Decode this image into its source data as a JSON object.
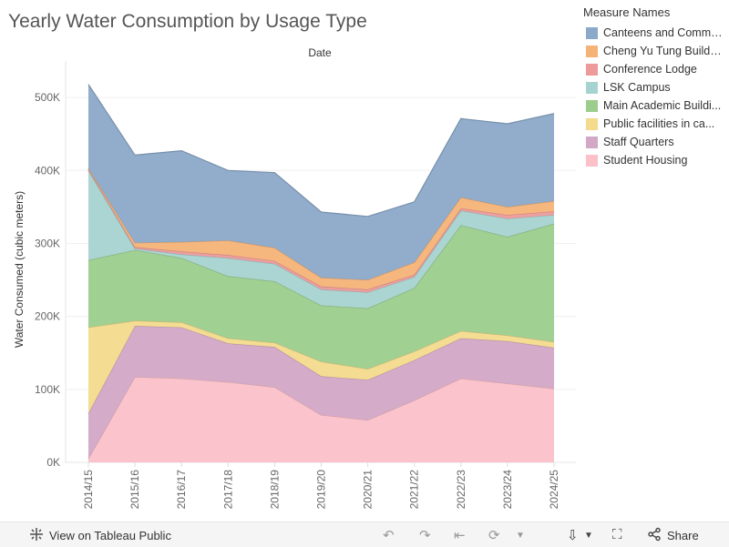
{
  "title": "Yearly Water Consumption by Usage Type",
  "legend": {
    "title": "Measure Names",
    "items": [
      {
        "label": "Canteens and Comme...",
        "color": "#8ba9c8"
      },
      {
        "label": "Cheng Yu Tung Building",
        "color": "#f5b378"
      },
      {
        "label": "Conference Lodge",
        "color": "#ed9a9b"
      },
      {
        "label": "LSK Campus",
        "color": "#a6d3d0"
      },
      {
        "label": "Main Academic Buildi...",
        "color": "#9ccd8d"
      },
      {
        "label": "Public facilities in ca...",
        "color": "#f3da8d"
      },
      {
        "label": "Staff Quarters",
        "color": "#d2a8c6"
      },
      {
        "label": "Student Housing",
        "color": "#fbc0c8"
      }
    ]
  },
  "toolbar": {
    "view_label": "View on Tableau Public",
    "share_label": "Share"
  },
  "chart_data": {
    "type": "area",
    "stacked": true,
    "column_header": "Date",
    "ylabel": "Water Consumed (cubic meters)",
    "ylim": [
      0,
      550000
    ],
    "yticks": [
      0,
      100000,
      200000,
      300000,
      400000,
      500000
    ],
    "ytick_labels": [
      "0K",
      "100K",
      "200K",
      "300K",
      "400K",
      "500K"
    ],
    "categories": [
      "2014/15",
      "2015/16",
      "2016/17",
      "2017/18",
      "2018/19",
      "2019/20",
      "2020/21",
      "2021/22",
      "2022/23",
      "2023/24",
      "2024/25"
    ],
    "series": [
      {
        "name": "Student Housing",
        "color": "#fbc0c8",
        "values": [
          5000,
          117000,
          115000,
          110000,
          103000,
          65000,
          58000,
          85000,
          115000,
          108000,
          101000
        ]
      },
      {
        "name": "Staff Quarters",
        "color": "#d2a8c6",
        "values": [
          62000,
          70000,
          70000,
          53000,
          55000,
          53000,
          55000,
          55000,
          55000,
          58000,
          56000
        ]
      },
      {
        "name": "Public facilities in ca...",
        "color": "#f3da8d",
        "values": [
          118000,
          7000,
          7000,
          7000,
          6000,
          20000,
          15000,
          12000,
          10000,
          8000,
          8000
        ]
      },
      {
        "name": "Main Academic Buildi...",
        "color": "#9ccd8d",
        "values": [
          92000,
          97000,
          88000,
          85000,
          84000,
          77000,
          83000,
          87000,
          145000,
          135000,
          162000
        ]
      },
      {
        "name": "LSK Campus",
        "color": "#a6d3d0",
        "values": [
          123000,
          2000,
          5000,
          25000,
          24000,
          22000,
          22000,
          15000,
          20000,
          25000,
          12000
        ]
      },
      {
        "name": "Conference Lodge",
        "color": "#ed9a9b",
        "values": [
          2000,
          2000,
          4000,
          4000,
          4000,
          4000,
          4000,
          3000,
          3000,
          5000,
          5000
        ]
      },
      {
        "name": "Cheng Yu Tung Building",
        "color": "#f5b378",
        "values": [
          1000,
          6000,
          13000,
          20000,
          18000,
          12000,
          13000,
          17000,
          15000,
          11000,
          14000
        ]
      },
      {
        "name": "Canteens and Comme...",
        "color": "#8ba9c8",
        "values": [
          115000,
          120000,
          125000,
          96000,
          103000,
          90000,
          87000,
          83000,
          108000,
          114000,
          120000
        ]
      }
    ]
  }
}
